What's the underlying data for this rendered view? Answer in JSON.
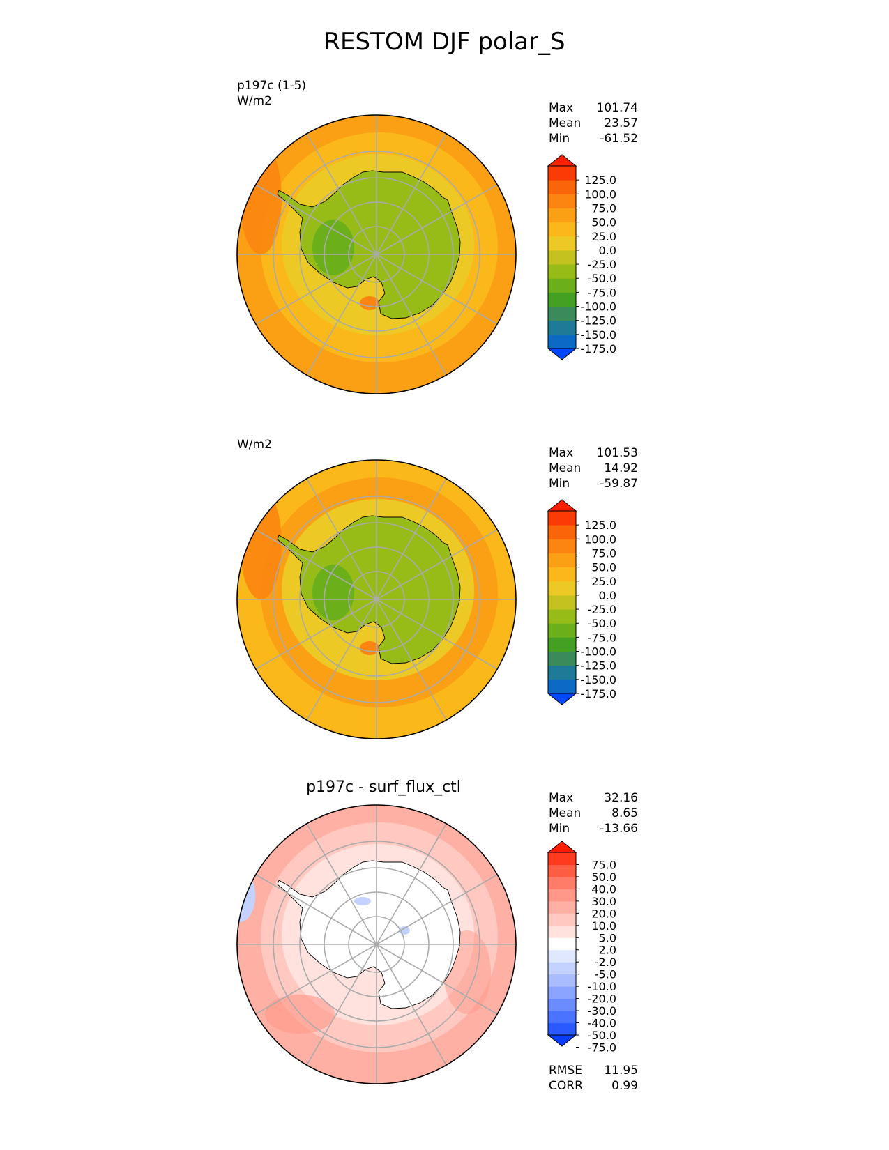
{
  "title": "RESTOM DJF polar_S",
  "panels": [
    {
      "id": "test",
      "title": "",
      "label_lines": [
        "p197c (1-5)",
        "W/m2"
      ],
      "stats": [
        {
          "name": "Max",
          "value": "101.74"
        },
        {
          "name": "Mean",
          "value": "23.57"
        },
        {
          "name": "Min",
          "value": "-61.52"
        }
      ],
      "colorbar": {
        "ticks": [
          "125.0",
          "100.0",
          "75.0",
          "50.0",
          "25.0",
          "0.0",
          "-25.0",
          "-50.0",
          "-75.0",
          "-100.0",
          "-125.0",
          "-150.0",
          "-175.0"
        ],
        "colors": [
          "#0047ff",
          "#0d6ac4",
          "#1e7a96",
          "#3b8a5c",
          "#44a022",
          "#6bb01b",
          "#97bc18",
          "#c4c21e",
          "#ecc924",
          "#fbb81a",
          "#fb9f14",
          "#fb8510",
          "#fb6509",
          "#fb3b06",
          "#fb1e00"
        ]
      }
    },
    {
      "id": "reference",
      "title": "",
      "label_lines": [
        "W/m2"
      ],
      "stats": [
        {
          "name": "Max",
          "value": "101.53"
        },
        {
          "name": "Mean",
          "value": "14.92"
        },
        {
          "name": "Min",
          "value": "-59.87"
        }
      ],
      "colorbar": {
        "ticks": [
          "125.0",
          "100.0",
          "75.0",
          "50.0",
          "25.0",
          "0.0",
          "-25.0",
          "-50.0",
          "-75.0",
          "-100.0",
          "-125.0",
          "-150.0",
          "-175.0"
        ],
        "colors": [
          "#0047ff",
          "#0d6ac4",
          "#1e7a96",
          "#3b8a5c",
          "#44a022",
          "#6bb01b",
          "#97bc18",
          "#c4c21e",
          "#ecc924",
          "#fbb81a",
          "#fb9f14",
          "#fb8510",
          "#fb6509",
          "#fb3b06",
          "#fb1e00"
        ]
      }
    },
    {
      "id": "difference",
      "title": "p197c - surf_flux_ctl",
      "label_lines": [],
      "stats": [
        {
          "name": "Max",
          "value": "32.16"
        },
        {
          "name": "Mean",
          "value": "8.65"
        },
        {
          "name": "Min",
          "value": "-13.66"
        }
      ],
      "colorbar": {
        "ticks": [
          "75.0",
          "50.0",
          "40.0",
          "30.0",
          "20.0",
          "10.0",
          "5.0",
          "2.0",
          "-2.0",
          "-5.0",
          "-10.0",
          "-20.0",
          "-30.0",
          "-40.0",
          "-50.0",
          "-75.0"
        ],
        "colors": [
          "#0a3dff",
          "#2a5aff",
          "#4a74ff",
          "#6a8cff",
          "#8aa4ff",
          "#a8bcff",
          "#c4d2ff",
          "#e0e8ff",
          "#ffffff",
          "#ffe2de",
          "#ffc8c0",
          "#ffb0a4",
          "#ff9888",
          "#ff7c68",
          "#ff5c44",
          "#ff3a1e",
          "#ff1e00"
        ]
      },
      "extra_stats": [
        {
          "name": "RMSE",
          "value": "11.95"
        },
        {
          "name": "CORR",
          "value": "0.99"
        }
      ]
    }
  ],
  "chart_data": [
    {
      "type": "heatmap",
      "projection": "south polar stereographic",
      "units": "W/m2",
      "label": "p197c (1-5)",
      "stats": {
        "max": 101.74,
        "mean": 23.57,
        "min": -61.52
      },
      "levels": [
        -175,
        -150,
        -125,
        -100,
        -75,
        -50,
        -25,
        0,
        25,
        50,
        75,
        100,
        125
      ]
    },
    {
      "type": "heatmap",
      "projection": "south polar stereographic",
      "units": "W/m2",
      "stats": {
        "max": 101.53,
        "mean": 14.92,
        "min": -59.87
      },
      "levels": [
        -175,
        -150,
        -125,
        -100,
        -75,
        -50,
        -25,
        0,
        25,
        50,
        75,
        100,
        125
      ]
    },
    {
      "type": "heatmap",
      "projection": "south polar stereographic",
      "title": "p197c - surf_flux_ctl",
      "stats": {
        "max": 32.16,
        "mean": 8.65,
        "min": -13.66,
        "rmse": 11.95,
        "corr": 0.99
      },
      "levels": [
        -75,
        -50,
        -40,
        -30,
        -20,
        -10,
        -5,
        -2,
        2,
        5,
        10,
        20,
        30,
        40,
        50,
        75
      ]
    }
  ],
  "map_colors": {
    "test": {
      "ocean_outer": "#fb9f14",
      "ocean_mid": "#fbb81a",
      "ice_ring": "#ecc924",
      "land": "#97bc18",
      "land_low": "#6bb01b",
      "warm_patch": "#fb8510"
    },
    "reference": {
      "ocean_outer": "#fbb81a",
      "ocean_mid": "#fb9f14",
      "ice_ring": "#ecc924",
      "land": "#97bc18",
      "land_low": "#6bb01b",
      "warm_patch": "#fb8510"
    },
    "difference": {
      "ocean_outer": "#ffb0a4",
      "ocean_mid": "#ffc8c0",
      "ice_ring": "#ffe2de",
      "land": "#ffffff",
      "neg_patch": "#c4d2ff",
      "strong_patch": "#ff9888"
    }
  }
}
